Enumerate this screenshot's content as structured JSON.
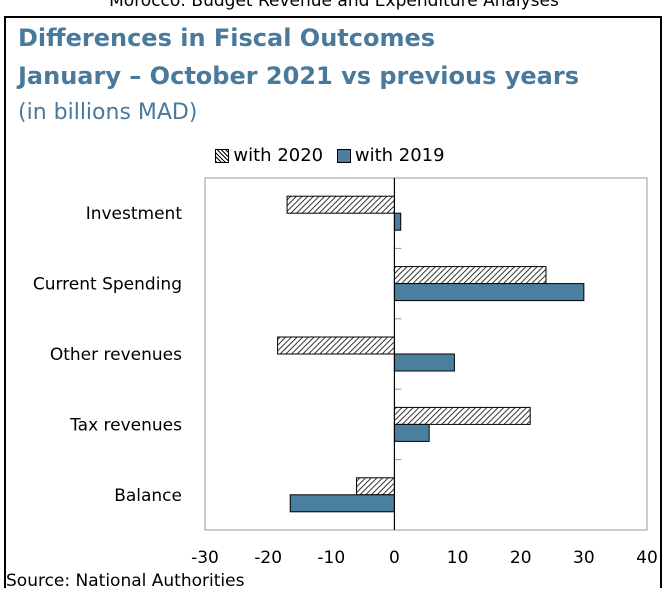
{
  "header": {
    "top_line": "Morocco: Budget Revenue and Expenditure Analyses"
  },
  "title_line1": "Differences in Fiscal Outcomes",
  "title_line2": "January – October 2021 vs previous years",
  "unit": "(in billions MAD)",
  "source": "Source: National Authorities",
  "colors": {
    "title": "#4a7a9b",
    "series_2019": "#4a7fa0",
    "series_2020": "hatched"
  },
  "chart_data": {
    "type": "bar",
    "orientation": "horizontal",
    "categories": [
      "Investment",
      "Current Spending",
      "Other revenues",
      "Tax revenues",
      "Balance"
    ],
    "series": [
      {
        "name": "with 2020",
        "values": [
          -17,
          24,
          -18.5,
          21.5,
          -6
        ]
      },
      {
        "name": "with 2019",
        "values": [
          1,
          30,
          9.5,
          5.5,
          -16.5
        ]
      }
    ],
    "xlim": [
      -30,
      40
    ],
    "xticks": [
      "-30",
      "-20",
      "-10",
      "0",
      "10",
      "20",
      "30",
      "40"
    ],
    "legend": [
      "with 2020",
      "with 2019"
    ],
    "legend_position": "top",
    "grid": false
  }
}
